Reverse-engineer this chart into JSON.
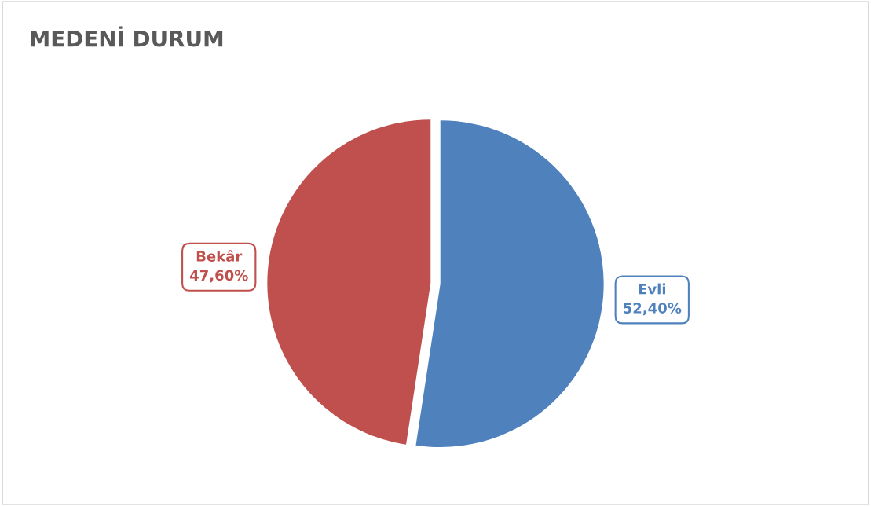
{
  "chart_data": {
    "type": "pie",
    "title": "MEDENİ DURUM",
    "categories": [
      "Evli",
      "Bekâr"
    ],
    "values": [
      52.4,
      47.6
    ],
    "colors": [
      "#4f81bd",
      "#c0504d"
    ],
    "value_labels": [
      "52,40%",
      "47,60%"
    ],
    "legend": false
  }
}
